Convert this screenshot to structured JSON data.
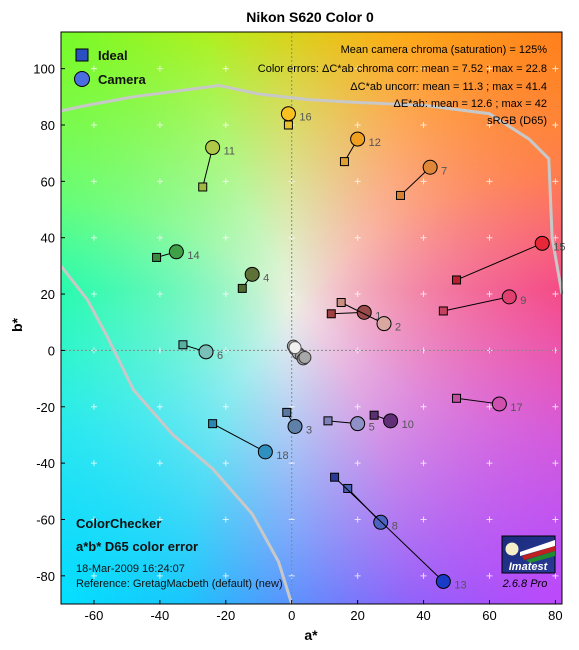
{
  "chart_data": {
    "type": "scatter",
    "title": "Nikon S620 Color 0",
    "xlabel": "a*",
    "ylabel": "b*",
    "xlim": [
      -70,
      82
    ],
    "ylim": [
      -90,
      113
    ],
    "xticks": [
      -60,
      -40,
      -20,
      0,
      20,
      40,
      60,
      80
    ],
    "yticks": [
      -80,
      -60,
      -40,
      -20,
      0,
      20,
      40,
      60,
      80,
      100
    ],
    "legend": {
      "position": "top-left",
      "entries": [
        {
          "name": "Ideal",
          "marker": "square",
          "color": "#2a4fc0"
        },
        {
          "name": "Camera",
          "marker": "circle",
          "color": "#4a6ee0"
        }
      ]
    },
    "info_lines": [
      "Mean camera chroma (saturation) = 125%",
      "Color errors:  ΔC*ab chroma corr:  mean = 7.52 ;  max = 22.8",
      "ΔC*ab uncorr:  mean = 11.3 ;  max = 41.4",
      "ΔE*ab:  mean = 12.6 ;  max = 42",
      "sRGB (D65)"
    ],
    "patches": [
      {
        "id": "1",
        "ideal": [
          12,
          13
        ],
        "camera": [
          22,
          13.5
        ],
        "ideal_color": "#a04040",
        "camera_color": "#9a4a4a"
      },
      {
        "id": "2",
        "ideal": [
          15,
          17
        ],
        "camera": [
          28,
          9.5
        ],
        "ideal_color": "#c89080",
        "camera_color": "#d8a8a0"
      },
      {
        "id": "3",
        "ideal": [
          -1.5,
          -22
        ],
        "camera": [
          1,
          -27
        ],
        "ideal_color": "#5a78a0",
        "camera_color": "#5f80a8"
      },
      {
        "id": "4",
        "ideal": [
          -15,
          22
        ],
        "camera": [
          -12,
          27
        ],
        "ideal_color": "#4e6a30",
        "camera_color": "#5e7238"
      },
      {
        "id": "5",
        "ideal": [
          11,
          -25
        ],
        "camera": [
          20,
          -26
        ],
        "ideal_color": "#8080b8",
        "camera_color": "#9090c8"
      },
      {
        "id": "6",
        "ideal": [
          -33,
          2
        ],
        "camera": [
          -26,
          -0.5
        ],
        "ideal_color": "#5ab0a0",
        "camera_color": "#7ac0b8"
      },
      {
        "id": "7",
        "ideal": [
          33,
          55
        ],
        "camera": [
          42,
          65
        ],
        "ideal_color": "#d88030",
        "camera_color": "#e08838"
      },
      {
        "id": "8",
        "ideal": [
          17,
          -49
        ],
        "camera": [
          27,
          -61
        ],
        "ideal_color": "#4a60b0",
        "camera_color": "#4e62c0"
      },
      {
        "id": "9",
        "ideal": [
          46,
          14
        ],
        "camera": [
          66,
          19
        ],
        "ideal_color": "#c84060",
        "camera_color": "#e04070"
      },
      {
        "id": "10",
        "ideal": [
          25,
          -23
        ],
        "camera": [
          30,
          -25
        ],
        "ideal_color": "#5a3070",
        "camera_color": "#622e78"
      },
      {
        "id": "11",
        "ideal": [
          -27,
          58
        ],
        "camera": [
          -24,
          72
        ],
        "ideal_color": "#a0b840",
        "camera_color": "#b0c848"
      },
      {
        "id": "12",
        "ideal": [
          16,
          67
        ],
        "camera": [
          20,
          75
        ],
        "ideal_color": "#e0a030",
        "camera_color": "#f0a020"
      },
      {
        "id": "13",
        "ideal": [
          13,
          -45
        ],
        "camera": [
          46,
          -82
        ],
        "ideal_color": "#2a3a98",
        "camera_color": "#1a3ac8"
      },
      {
        "id": "14",
        "ideal": [
          -41,
          33
        ],
        "camera": [
          -35,
          35
        ],
        "ideal_color": "#3a8a40",
        "camera_color": "#40a048"
      },
      {
        "id": "15",
        "ideal": [
          50,
          25
        ],
        "camera": [
          76,
          38
        ],
        "ideal_color": "#b82030",
        "camera_color": "#e82838"
      },
      {
        "id": "16",
        "ideal": [
          -1,
          80
        ],
        "camera": [
          -1,
          84
        ],
        "ideal_color": "#e8c030",
        "camera_color": "#f8c020"
      },
      {
        "id": "17",
        "ideal": [
          50,
          -17
        ],
        "camera": [
          63,
          -19
        ],
        "ideal_color": "#c050a0",
        "camera_color": "#d050b0"
      },
      {
        "id": "18",
        "ideal": [
          -24,
          -26
        ],
        "camera": [
          -8,
          -36
        ],
        "ideal_color": "#2a88b0",
        "camera_color": "#3090c0"
      }
    ],
    "neutrals": [
      [
        0.5,
        1.5
      ],
      [
        1,
        0.5
      ],
      [
        2,
        -1
      ],
      [
        3,
        -2
      ],
      [
        3.5,
        -3
      ],
      [
        4,
        -2.5
      ]
    ],
    "footer": {
      "title": "ColorChecker",
      "subtitle": "a*b* D65 color error",
      "timestamp": "18-Mar-2009 16:24:07",
      "reference": "Reference:  GretagMacbeth (default) (new)",
      "logo_text": "Imatest",
      "version": "2.6.8  Pro"
    }
  }
}
